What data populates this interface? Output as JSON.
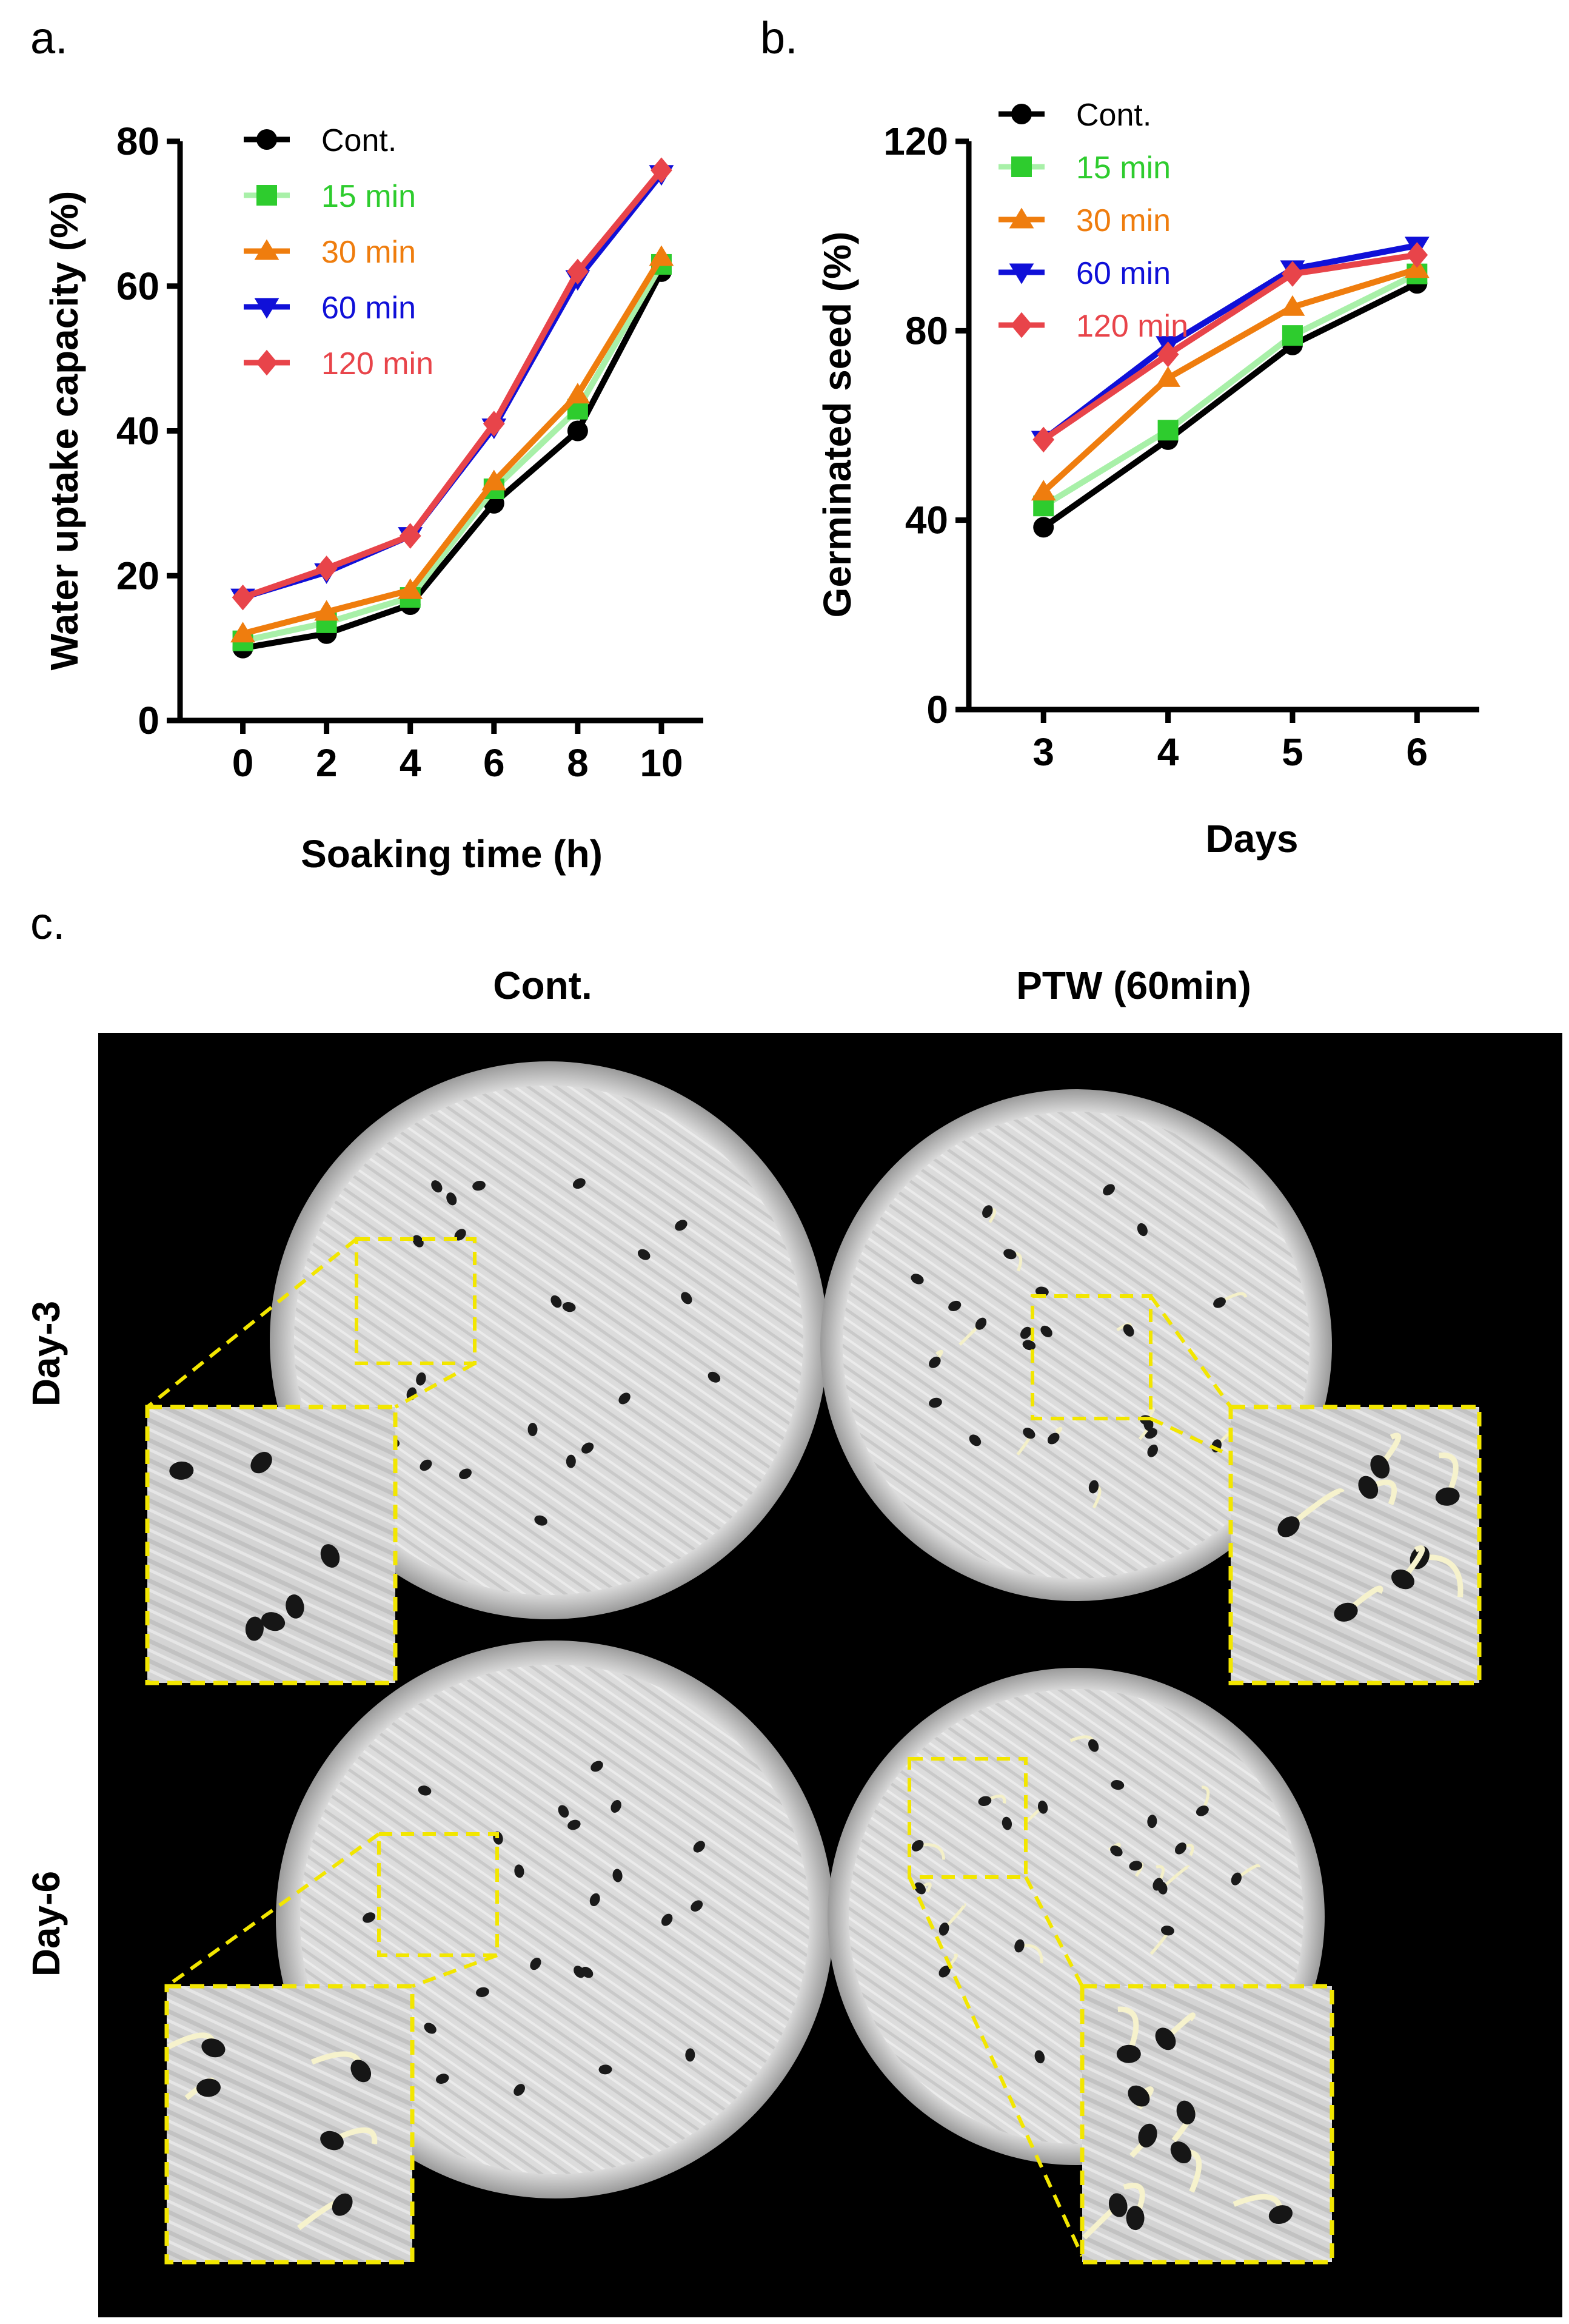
{
  "panel_labels": {
    "a": "a.",
    "b": "b.",
    "c": "c."
  },
  "chart_data": [
    {
      "panel": "a",
      "type": "line",
      "title": "",
      "xlabel": "Soaking time (h)",
      "ylabel": "Water uptake capacity (%)",
      "x": [
        0,
        2,
        4,
        6,
        8,
        10
      ],
      "xlim": [
        -1.5,
        11
      ],
      "ylim": [
        0,
        80
      ],
      "yticks": [
        0,
        20,
        40,
        60,
        80
      ],
      "legend_position": "top-left",
      "grid": false,
      "series": [
        {
          "name": "Cont.",
          "color": "#000000",
          "marker": "circle",
          "values": [
            10,
            12,
            16,
            30,
            40,
            62
          ]
        },
        {
          "name": "15 min",
          "color": "#2ecc2e",
          "line_color": "#a8f0a8",
          "marker": "square",
          "values": [
            11,
            13.5,
            17,
            32,
            43,
            63
          ]
        },
        {
          "name": "30 min",
          "color": "#ef7d0e",
          "marker": "triangle-up",
          "values": [
            12,
            15,
            18,
            33,
            45,
            64
          ]
        },
        {
          "name": "60 min",
          "color": "#1010d8",
          "marker": "triangle-down",
          "values": [
            17,
            20.5,
            25.5,
            40.5,
            61,
            75.5
          ]
        },
        {
          "name": "120 min",
          "color": "#e8444a",
          "marker": "diamond",
          "values": [
            17,
            21,
            25.5,
            41,
            62,
            76
          ]
        }
      ]
    },
    {
      "panel": "b",
      "type": "line",
      "title": "",
      "xlabel": "Days",
      "ylabel": "Germinated seed (%)",
      "x": [
        3,
        4,
        5,
        6
      ],
      "xlim": [
        2.4,
        6.5
      ],
      "ylim": [
        0,
        120
      ],
      "yticks": [
        0,
        40,
        80,
        120
      ],
      "legend_position": "top-left",
      "grid": false,
      "series": [
        {
          "name": "Cont.",
          "color": "#000000",
          "marker": "circle",
          "values": [
            38.5,
            57,
            77,
            90
          ]
        },
        {
          "name": "15 min",
          "color": "#2ecc2e",
          "line_color": "#a8f0a8",
          "marker": "square",
          "values": [
            43,
            59,
            79,
            92
          ]
        },
        {
          "name": "30 min",
          "color": "#ef7d0e",
          "marker": "triangle-up",
          "values": [
            46,
            70,
            85,
            93
          ]
        },
        {
          "name": "60 min",
          "color": "#1010d8",
          "marker": "triangle-down",
          "values": [
            57,
            77,
            93,
            98
          ]
        },
        {
          "name": "120 min",
          "color": "#e8444a",
          "marker": "diamond",
          "values": [
            57,
            75,
            92,
            96
          ]
        }
      ]
    }
  ],
  "photo_panel": {
    "col_headers": [
      "Cont.",
      "PTW (60min)"
    ],
    "row_labels": [
      "Day-3",
      "Day-6"
    ]
  }
}
